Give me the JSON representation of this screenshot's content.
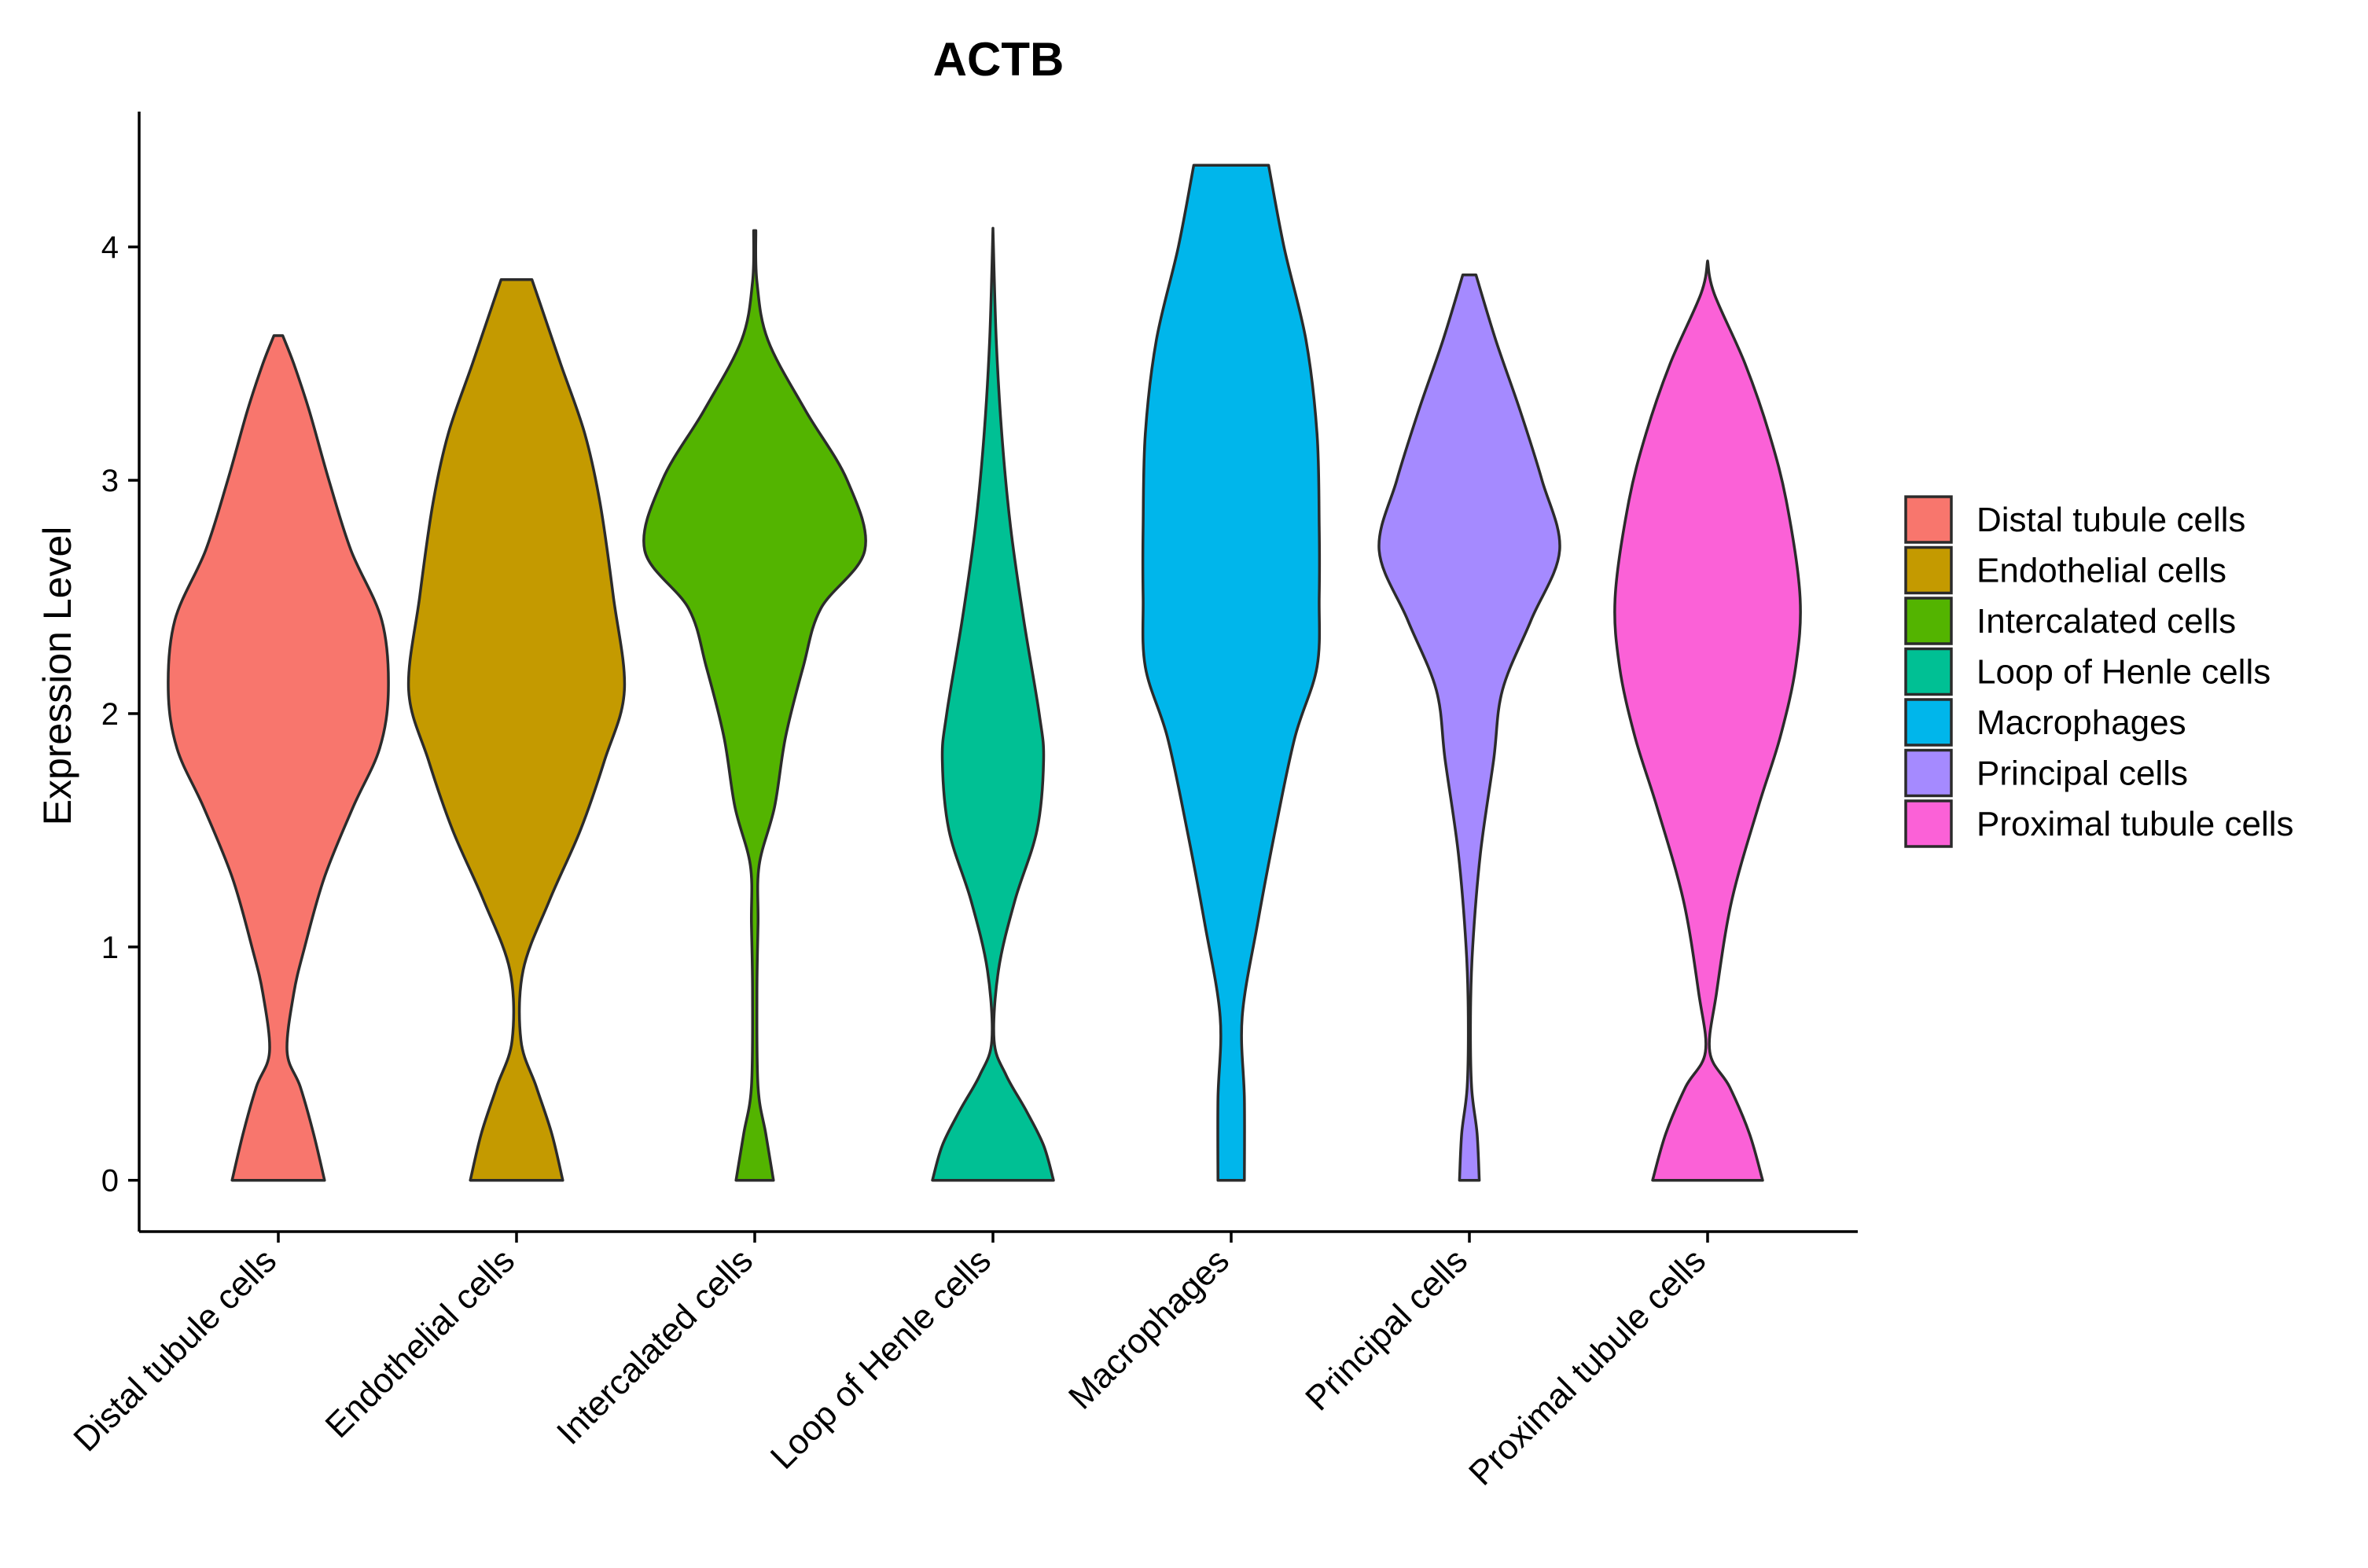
{
  "chart_data": {
    "type": "violin",
    "title": "ACTB",
    "xlabel": "",
    "ylabel": "Expression Level",
    "ylim": [
      -0.22,
      4.58
    ],
    "yticks": [
      0,
      1,
      2,
      3,
      4
    ],
    "grid": false,
    "legend_position": "right",
    "categories": [
      "Distal tubule cells",
      "Endothelial cells",
      "Intercalated cells",
      "Loop of Henle cells",
      "Macrophages",
      "Principal cells",
      "Proximal tubule cells"
    ],
    "series": [
      {
        "name": "Distal tubule cells",
        "color": "#F8766D",
        "min": 0,
        "max": 3.62,
        "density_profile": [
          [
            0,
            0.42
          ],
          [
            0.2,
            0.32
          ],
          [
            0.4,
            0.2
          ],
          [
            0.55,
            0.08
          ],
          [
            0.8,
            0.14
          ],
          [
            1.0,
            0.24
          ],
          [
            1.3,
            0.42
          ],
          [
            1.6,
            0.68
          ],
          [
            1.85,
            0.92
          ],
          [
            2.1,
            1.0
          ],
          [
            2.4,
            0.94
          ],
          [
            2.7,
            0.66
          ],
          [
            3.0,
            0.46
          ],
          [
            3.3,
            0.28
          ],
          [
            3.5,
            0.14
          ],
          [
            3.62,
            0.04
          ]
        ]
      },
      {
        "name": "Endothelial cells",
        "color": "#C49A00",
        "min": 0,
        "max": 3.86,
        "density_profile": [
          [
            0,
            0.42
          ],
          [
            0.2,
            0.32
          ],
          [
            0.4,
            0.18
          ],
          [
            0.6,
            0.04
          ],
          [
            0.9,
            0.06
          ],
          [
            1.2,
            0.3
          ],
          [
            1.5,
            0.58
          ],
          [
            1.8,
            0.8
          ],
          [
            2.1,
            0.98
          ],
          [
            2.5,
            0.88
          ],
          [
            2.9,
            0.76
          ],
          [
            3.2,
            0.62
          ],
          [
            3.5,
            0.4
          ],
          [
            3.75,
            0.22
          ],
          [
            3.86,
            0.14
          ]
        ]
      },
      {
        "name": "Intercalated cells",
        "color": "#53B400",
        "min": 0,
        "max": 4.07,
        "density_profile": [
          [
            0,
            0.17
          ],
          [
            0.2,
            0.1
          ],
          [
            0.4,
            0.03
          ],
          [
            0.8,
            0.02
          ],
          [
            1.1,
            0.03
          ],
          [
            1.35,
            0.04
          ],
          [
            1.6,
            0.18
          ],
          [
            1.9,
            0.28
          ],
          [
            2.2,
            0.44
          ],
          [
            2.45,
            0.6
          ],
          [
            2.7,
            1.0
          ],
          [
            3.0,
            0.84
          ],
          [
            3.3,
            0.46
          ],
          [
            3.6,
            0.12
          ],
          [
            3.85,
            0.02
          ],
          [
            4.07,
            0.01
          ]
        ]
      },
      {
        "name": "Loop of Henle cells",
        "color": "#00C094",
        "min": 0,
        "max": 4.08,
        "density_profile": [
          [
            0,
            0.55
          ],
          [
            0.15,
            0.46
          ],
          [
            0.3,
            0.3
          ],
          [
            0.45,
            0.12
          ],
          [
            0.6,
            0.01
          ],
          [
            0.9,
            0.05
          ],
          [
            1.2,
            0.2
          ],
          [
            1.5,
            0.4
          ],
          [
            1.8,
            0.46
          ],
          [
            2.0,
            0.42
          ],
          [
            2.4,
            0.28
          ],
          [
            2.8,
            0.16
          ],
          [
            3.2,
            0.08
          ],
          [
            3.6,
            0.03
          ],
          [
            4.08,
            0.0
          ]
        ]
      },
      {
        "name": "Macrophages",
        "color": "#00B6EB",
        "min": 0,
        "max": 4.35,
        "density_profile": [
          [
            0,
            0.12
          ],
          [
            0.35,
            0.12
          ],
          [
            0.7,
            0.1
          ],
          [
            1.1,
            0.24
          ],
          [
            1.5,
            0.4
          ],
          [
            1.9,
            0.58
          ],
          [
            2.2,
            0.78
          ],
          [
            2.5,
            0.8
          ],
          [
            2.8,
            0.8
          ],
          [
            3.2,
            0.78
          ],
          [
            3.6,
            0.68
          ],
          [
            4.0,
            0.48
          ],
          [
            4.35,
            0.34
          ]
        ]
      },
      {
        "name": "Principal cells",
        "color": "#A58AFF",
        "min": 0,
        "max": 3.88,
        "density_profile": [
          [
            0,
            0.09
          ],
          [
            0.2,
            0.07
          ],
          [
            0.4,
            0.02
          ],
          [
            0.7,
            0.01
          ],
          [
            1.0,
            0.03
          ],
          [
            1.4,
            0.1
          ],
          [
            1.8,
            0.22
          ],
          [
            2.1,
            0.3
          ],
          [
            2.4,
            0.56
          ],
          [
            2.7,
            0.82
          ],
          [
            3.0,
            0.66
          ],
          [
            3.3,
            0.46
          ],
          [
            3.6,
            0.24
          ],
          [
            3.88,
            0.06
          ]
        ]
      },
      {
        "name": "Proximal tubule cells",
        "color": "#FB61D7",
        "min": 0,
        "max": 3.94,
        "density_profile": [
          [
            0,
            0.5
          ],
          [
            0.2,
            0.38
          ],
          [
            0.4,
            0.2
          ],
          [
            0.55,
            0.02
          ],
          [
            0.8,
            0.08
          ],
          [
            1.2,
            0.22
          ],
          [
            1.6,
            0.46
          ],
          [
            1.9,
            0.66
          ],
          [
            2.2,
            0.8
          ],
          [
            2.5,
            0.84
          ],
          [
            2.9,
            0.72
          ],
          [
            3.2,
            0.56
          ],
          [
            3.5,
            0.34
          ],
          [
            3.8,
            0.06
          ],
          [
            3.94,
            0.0
          ]
        ]
      }
    ]
  }
}
